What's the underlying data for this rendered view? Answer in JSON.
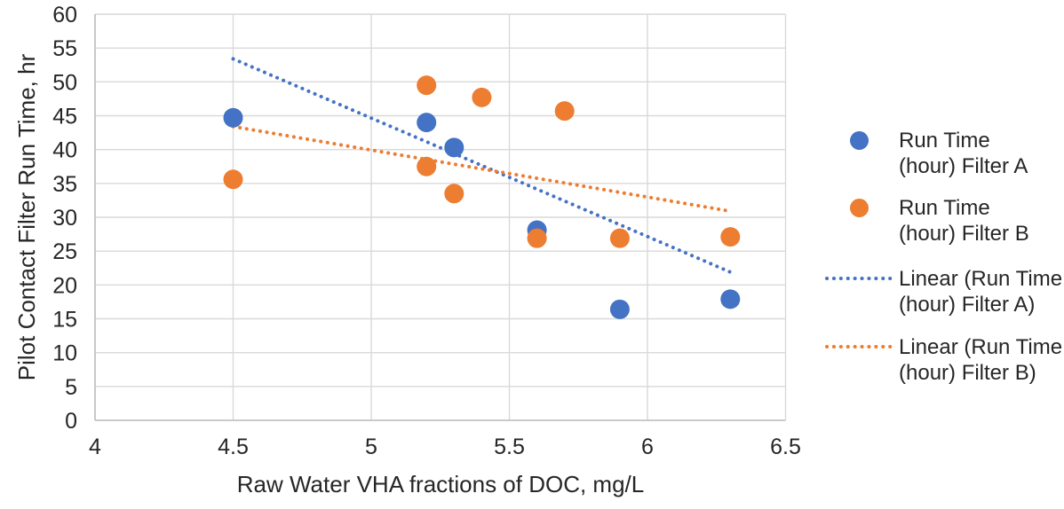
{
  "chart_data": {
    "type": "scatter",
    "title": "",
    "xlabel": "Raw Water VHA fractions of DOC, mg/L",
    "ylabel": "Pilot Contact Filter Run Time, hr",
    "xlim": [
      4,
      6.5
    ],
    "ylim": [
      0,
      60
    ],
    "x_ticks": [
      "4",
      "4.5",
      "5",
      "5.5",
      "6",
      "6.5"
    ],
    "y_ticks": [
      "0",
      "5",
      "10",
      "15",
      "20",
      "25",
      "30",
      "35",
      "40",
      "45",
      "50",
      "55",
      "60"
    ],
    "grid": true,
    "legend_position": "right",
    "series": [
      {
        "name": "Run Time (hour) Filter A",
        "color": "#4472C4",
        "points": [
          [
            4.5,
            44.7
          ],
          [
            5.2,
            44.0
          ],
          [
            5.3,
            40.3
          ],
          [
            5.6,
            28.1
          ],
          [
            5.9,
            16.4
          ],
          [
            6.3,
            17.9
          ]
        ]
      },
      {
        "name": "Run Time (hour) Filter B",
        "color": "#ED7D31",
        "points": [
          [
            4.5,
            35.6
          ],
          [
            5.2,
            49.5
          ],
          [
            5.2,
            37.5
          ],
          [
            5.3,
            33.5
          ],
          [
            5.4,
            47.7
          ],
          [
            5.6,
            26.9
          ],
          [
            5.7,
            45.7
          ],
          [
            5.9,
            26.9
          ],
          [
            6.3,
            27.1
          ]
        ]
      }
    ],
    "trendlines": [
      {
        "name": "Linear (Run Time (hour) Filter A)",
        "color": "#4472C4",
        "from": [
          4.5,
          53.4
        ],
        "to": [
          6.3,
          21.9
        ]
      },
      {
        "name": "Linear (Run Time (hour) Filter B)",
        "color": "#ED7D31",
        "from": [
          4.5,
          43.4
        ],
        "to": [
          6.3,
          30.9
        ]
      }
    ]
  },
  "legend": {
    "items": [
      {
        "id": "filter-a-points",
        "marker": "circle",
        "color": "#4472C4",
        "lines": [
          "Run Time",
          "(hour) Filter A"
        ]
      },
      {
        "id": "filter-b-points",
        "marker": "circle",
        "color": "#ED7D31",
        "lines": [
          "Run Time",
          "(hour) Filter B"
        ]
      },
      {
        "id": "filter-a-trendline",
        "marker": "dotted-line",
        "color": "#4472C4",
        "lines": [
          "Linear (Run Time",
          "(hour) Filter A)"
        ]
      },
      {
        "id": "filter-b-trendline",
        "marker": "dotted-line",
        "color": "#ED7D31",
        "lines": [
          "Linear (Run Time",
          "(hour) Filter B)"
        ]
      }
    ]
  },
  "colors": {
    "series_a": "#4472C4",
    "series_b": "#ED7D31",
    "gridline": "#D9D9D9",
    "axis_line": "#BFBFBF",
    "text": "#262626",
    "background": "#FFFFFF"
  }
}
